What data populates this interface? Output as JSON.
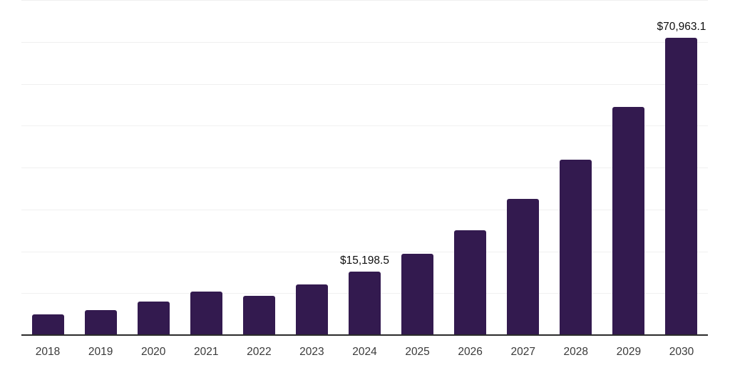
{
  "chart_data": {
    "type": "bar",
    "title": "",
    "xlabel": "",
    "ylabel": "",
    "categories": [
      "2018",
      "2019",
      "2020",
      "2021",
      "2022",
      "2023",
      "2024",
      "2025",
      "2026",
      "2027",
      "2028",
      "2029",
      "2030"
    ],
    "values": [
      4940,
      6010,
      8000,
      10330,
      9360,
      12030,
      15198.5,
      19460,
      24970,
      32510,
      41920,
      54520,
      70963.1
    ],
    "data_labels": [
      {
        "category": "2024",
        "text": "$15,198.5"
      },
      {
        "category": "2030",
        "text": "$70,963.1"
      }
    ],
    "ylim": [
      0,
      80000
    ],
    "gridline_step": 10000,
    "grid": true,
    "legend_position": "none",
    "colors": {
      "bar": "#331A4F",
      "axis_line": "#2B2B2B",
      "gridline": "#F0F0F0",
      "data_label_text": "#0E0E0E",
      "tick_label_text": "#3A3A3A",
      "background": "#FFFFFF"
    }
  }
}
